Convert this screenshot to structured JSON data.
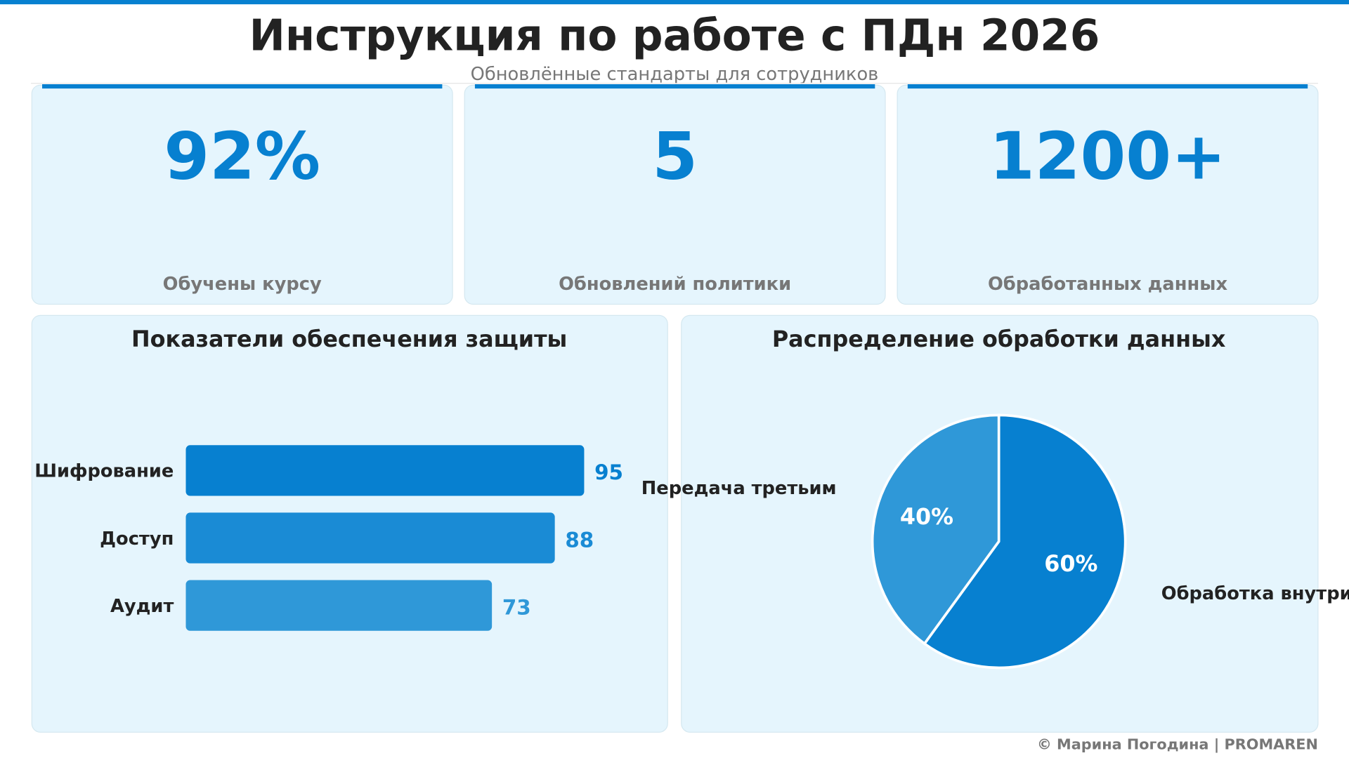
{
  "header": {
    "title": "Инструкция по работе с ПДн 2026",
    "subtitle": "Обновлённые стандарты для сотрудников"
  },
  "kpis": [
    {
      "value": "92%",
      "label": "Обучены курсу"
    },
    {
      "value": "5",
      "label": "Обновлений политики"
    },
    {
      "value": "1200+",
      "label": "Обработанных данных"
    }
  ],
  "chart_data": [
    {
      "type": "hbar",
      "title": "Показатели обеспечения защиты",
      "categories": [
        "Шифрование",
        "Доступ",
        "Аудит"
      ],
      "values": [
        95,
        88,
        73
      ],
      "colors": [
        "#0780d0",
        "#1a8bd5",
        "#2f98d8"
      ]
    },
    {
      "type": "pie",
      "title": "Распределение обработки данных",
      "categories": [
        "Обработка внутри",
        "Передача третьим"
      ],
      "values": [
        60,
        40
      ],
      "value_labels": [
        "60%",
        "40%"
      ],
      "colors": [
        "#0780d0",
        "#2f98d8"
      ]
    }
  ],
  "footer": "© Марина Погодина | PROMAREN"
}
